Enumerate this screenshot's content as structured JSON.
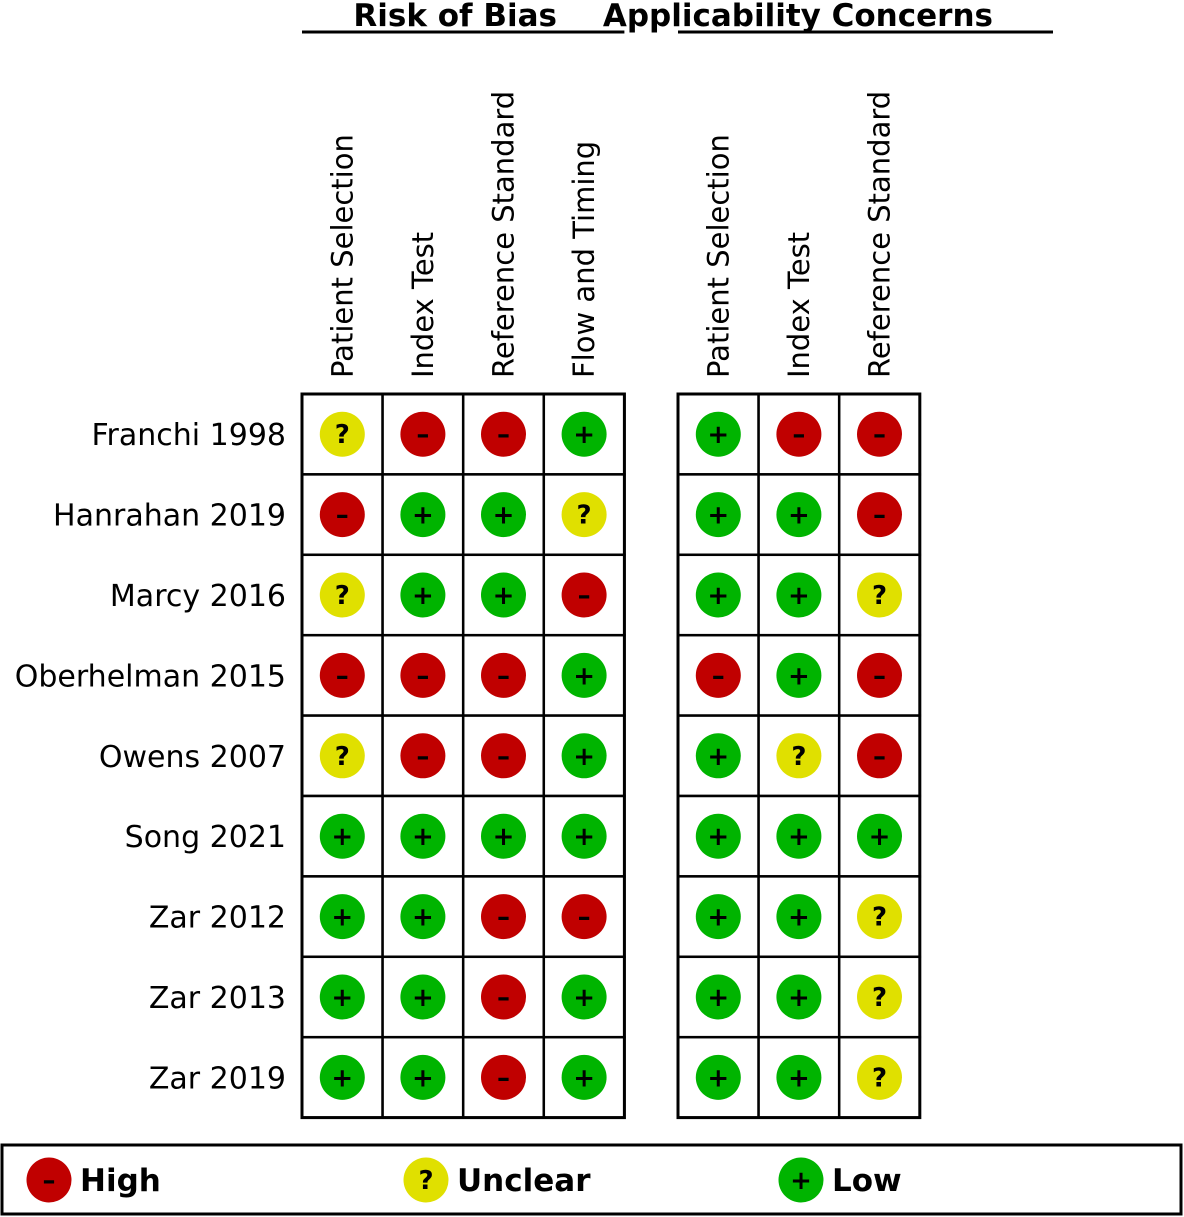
{
  "chart_data": {
    "type": "table",
    "groups": [
      {
        "name": "Risk of Bias",
        "columns": [
          "Patient Selection",
          "Index Test",
          "Reference Standard",
          "Flow and Timing"
        ]
      },
      {
        "name": "Applicability Concerns",
        "columns": [
          "Patient Selection",
          "Index Test",
          "Reference Standard"
        ]
      }
    ],
    "studies": [
      {
        "name": "Franchi 1998",
        "ratings": [
          "unclear",
          "high",
          "high",
          "low",
          "low",
          "high",
          "high"
        ]
      },
      {
        "name": "Hanrahan 2019",
        "ratings": [
          "high",
          "low",
          "low",
          "unclear",
          "low",
          "low",
          "high"
        ]
      },
      {
        "name": "Marcy 2016",
        "ratings": [
          "unclear",
          "low",
          "low",
          "high",
          "low",
          "low",
          "unclear"
        ]
      },
      {
        "name": "Oberhelman 2015",
        "ratings": [
          "high",
          "high",
          "high",
          "low",
          "high",
          "low",
          "high"
        ]
      },
      {
        "name": "Owens 2007",
        "ratings": [
          "unclear",
          "high",
          "high",
          "low",
          "low",
          "unclear",
          "high"
        ]
      },
      {
        "name": "Song 2021",
        "ratings": [
          "low",
          "low",
          "low",
          "low",
          "low",
          "low",
          "low"
        ]
      },
      {
        "name": "Zar 2012",
        "ratings": [
          "low",
          "low",
          "high",
          "high",
          "low",
          "low",
          "unclear"
        ]
      },
      {
        "name": "Zar 2013",
        "ratings": [
          "low",
          "low",
          "high",
          "low",
          "low",
          "low",
          "unclear"
        ]
      },
      {
        "name": "Zar 2019",
        "ratings": [
          "low",
          "low",
          "high",
          "low",
          "low",
          "low",
          "unclear"
        ]
      }
    ],
    "legend": [
      {
        "key": "high",
        "label": "High",
        "symbol": "–",
        "color": "#c00000"
      },
      {
        "key": "unclear",
        "label": "Unclear",
        "symbol": "?",
        "color": "#e0e000"
      },
      {
        "key": "low",
        "label": "Low",
        "symbol": "+",
        "color": "#00b400"
      }
    ]
  }
}
